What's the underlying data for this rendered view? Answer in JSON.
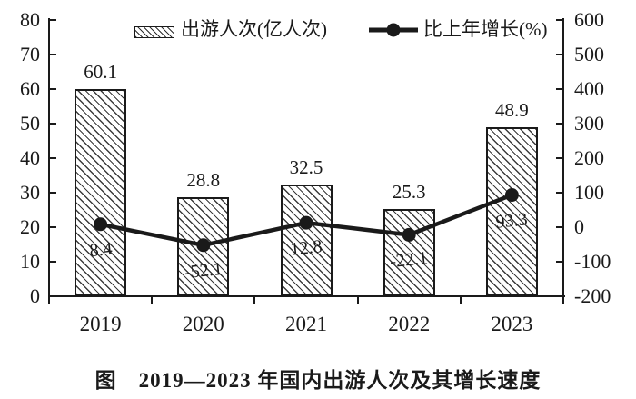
{
  "caption": "图　2019—2023 年国内出游人次及其增长速度",
  "legend": {
    "bar_label": "出游人次(亿人次)",
    "line_label": "比上年增长(%)"
  },
  "colors": {
    "ink": "#1a1a1a",
    "background": "#ffffff"
  },
  "chart_data": {
    "type": "bar+line combo",
    "categories": [
      "2019",
      "2020",
      "2021",
      "2022",
      "2023"
    ],
    "series": [
      {
        "name": "出游人次(亿人次)",
        "type": "bar",
        "axis": "left",
        "values": [
          60.1,
          28.8,
          32.5,
          25.3,
          48.9
        ]
      },
      {
        "name": "比上年增长(%)",
        "type": "line",
        "axis": "right",
        "values": [
          8.4,
          -52.1,
          12.8,
          -22.1,
          93.3
        ]
      }
    ],
    "left_axis": {
      "min": 0,
      "max": 80,
      "step": 10,
      "ticks": [
        0,
        10,
        20,
        30,
        40,
        50,
        60,
        70,
        80
      ]
    },
    "right_axis": {
      "min": -200,
      "max": 600,
      "step": 100,
      "ticks": [
        -200,
        -100,
        0,
        100,
        200,
        300,
        400,
        500,
        600
      ]
    },
    "grid": false,
    "data_labels": true,
    "legend_position": "top-inside"
  }
}
